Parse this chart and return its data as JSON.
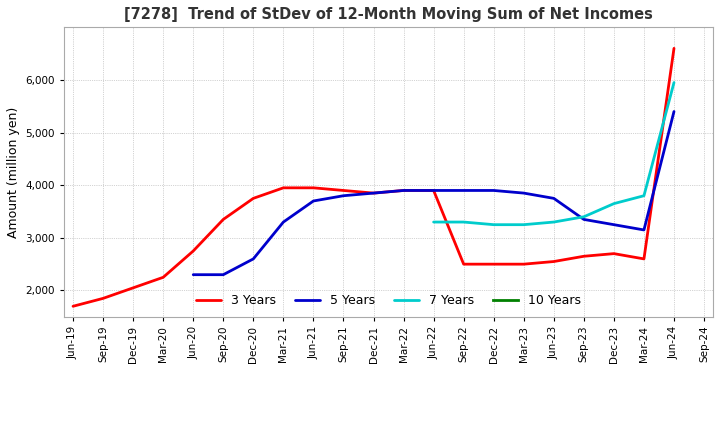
{
  "title": "[7278]  Trend of StDev of 12-Month Moving Sum of Net Incomes",
  "ylabel": "Amount (million yen)",
  "ylim": [
    1500,
    7000
  ],
  "yticks": [
    2000,
    3000,
    4000,
    5000,
    6000
  ],
  "x_labels": [
    "Jun-19",
    "Sep-19",
    "Dec-19",
    "Mar-20",
    "Jun-20",
    "Sep-20",
    "Dec-20",
    "Mar-21",
    "Jun-21",
    "Sep-21",
    "Dec-21",
    "Mar-22",
    "Jun-22",
    "Sep-22",
    "Dec-22",
    "Mar-23",
    "Jun-23",
    "Sep-23",
    "Dec-23",
    "Mar-24",
    "Jun-24",
    "Sep-24"
  ],
  "series": {
    "3 Years": {
      "color": "#FF0000",
      "values": [
        1700,
        1850,
        2050,
        2250,
        2750,
        3350,
        3750,
        3950,
        3950,
        3900,
        3850,
        3900,
        3900,
        2500,
        2500,
        2500,
        2550,
        2650,
        2700,
        2600,
        6600,
        null
      ]
    },
    "5 Years": {
      "color": "#0000CC",
      "values": [
        null,
        null,
        null,
        null,
        2300,
        2300,
        2600,
        3300,
        3700,
        3800,
        3850,
        3900,
        3900,
        3900,
        3900,
        3850,
        3750,
        3350,
        3250,
        3150,
        5400,
        null
      ]
    },
    "7 Years": {
      "color": "#00CCCC",
      "values": [
        null,
        null,
        null,
        null,
        null,
        null,
        null,
        null,
        null,
        null,
        null,
        null,
        3300,
        3300,
        3250,
        3250,
        3300,
        3400,
        3650,
        3800,
        5950,
        null
      ]
    },
    "10 Years": {
      "color": "#008000",
      "values": [
        null,
        null,
        null,
        null,
        null,
        null,
        null,
        null,
        null,
        null,
        null,
        null,
        null,
        null,
        null,
        null,
        null,
        null,
        null,
        null,
        null,
        null
      ]
    }
  },
  "legend_loc": "lower center",
  "grid": true,
  "background_color": "#FFFFFF"
}
